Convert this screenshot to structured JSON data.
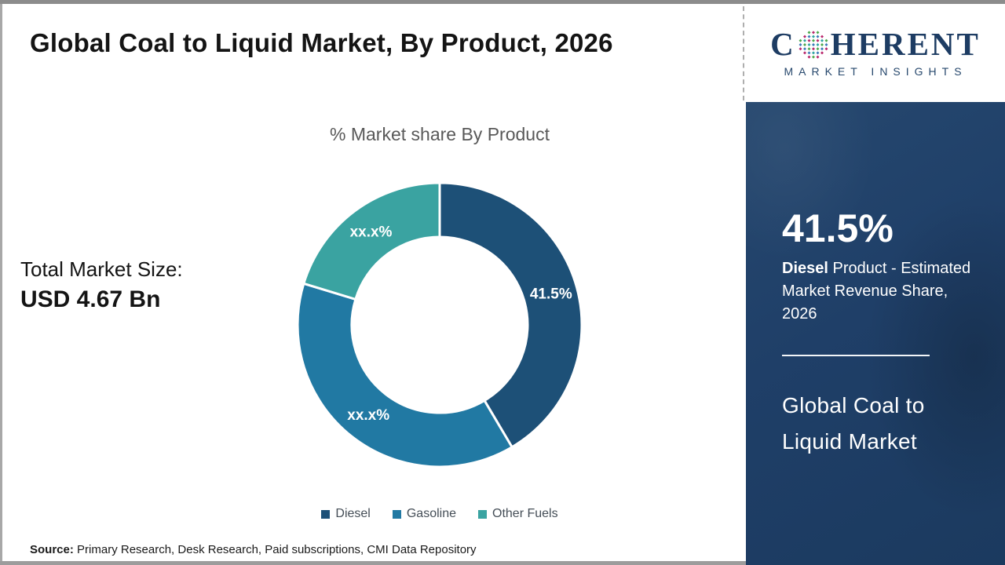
{
  "page": {
    "title": "Global Coal to Liquid Market, By Product, 2026",
    "source_label": "Source:",
    "source_text": " Primary Research, Desk Research, Paid subscriptions, CMI Data Repository"
  },
  "left_panel": {
    "total_label": "Total Market Size:",
    "total_value": "USD 4.67 Bn"
  },
  "logo": {
    "brand_first": "C",
    "brand_rest": "HERENT",
    "brand_sub": "MARKET INSIGHTS",
    "navy": "#1d3c63",
    "globe_colors": [
      "#4ca84c",
      "#3b79b8",
      "#b8256b",
      "#2ea3a0"
    ]
  },
  "sidebar": {
    "headline_value": "41.5%",
    "desc_bold": "Diesel",
    "desc_rest": " Product - Estimated Market Revenue Share, 2026",
    "panel_title": "Global Coal to Liquid Market",
    "bg_color": "#1f3f68"
  },
  "chart_data": {
    "type": "pie",
    "subtype": "donut",
    "title": "% Market share By Product",
    "legend_position": "bottom",
    "start_angle_deg": 0,
    "direction": "clockwise",
    "units": "% market revenue share",
    "segments": [
      {
        "name": "Diesel",
        "value": 41.5,
        "label": "41.5%",
        "color": "#1d5077"
      },
      {
        "name": "Gasoline",
        "value": 38.2,
        "label": "xx.x%",
        "color": "#2179a3"
      },
      {
        "name": "Other Fuels",
        "value": 20.3,
        "label": "xx.x%",
        "color": "#3aa3a1"
      }
    ]
  }
}
